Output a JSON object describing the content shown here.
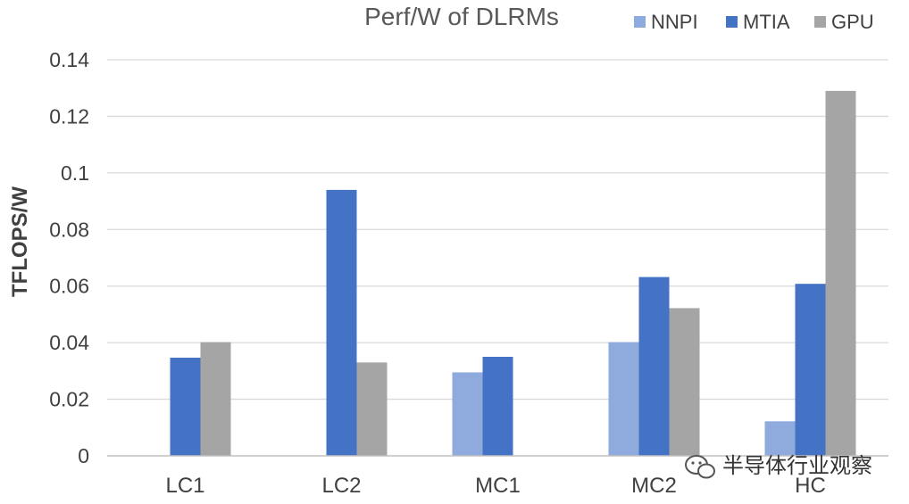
{
  "chart_data": {
    "type": "bar",
    "title": "Perf/W of DLRMs",
    "ylabel": "TFLOPS/W",
    "xlabel": "",
    "ylim": [
      0,
      0.14
    ],
    "ytick_labels": [
      "0",
      "0.02",
      "0.04",
      "0.06",
      "0.08",
      "0.1",
      "0.12",
      "0.14"
    ],
    "ytick_values": [
      0,
      0.02,
      0.04,
      0.06,
      0.08,
      0.1,
      0.12,
      0.14
    ],
    "categories": [
      "LC1",
      "LC2",
      "MC1",
      "MC2",
      "HC"
    ],
    "series": [
      {
        "name": "NNPI",
        "color": "#8faadc",
        "values": [
          null,
          null,
          0.0295,
          0.0402,
          0.0122
        ]
      },
      {
        "name": "MTIA",
        "color": "#4472c4",
        "values": [
          0.0347,
          0.094,
          0.035,
          0.0632,
          0.0608
        ]
      },
      {
        "name": "GPU",
        "color": "#a5a5a5",
        "values": [
          0.0402,
          0.033,
          null,
          0.0522,
          0.129
        ]
      }
    ],
    "grid": true,
    "legend_position": "top-right"
  },
  "watermark": {
    "text": "半导体行业观察",
    "icon": "wechat-icon"
  }
}
